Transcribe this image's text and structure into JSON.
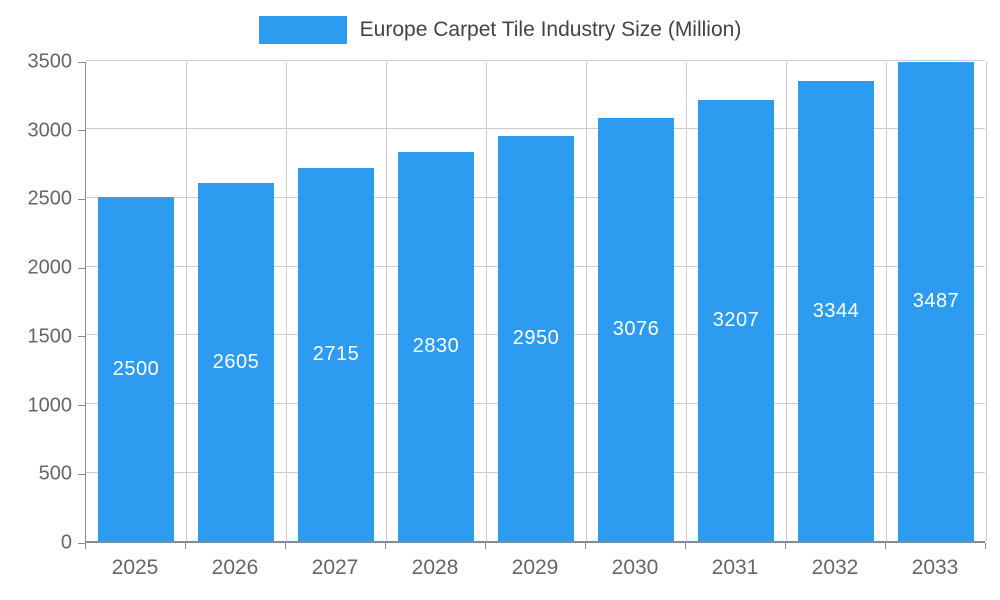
{
  "chart_data": {
    "type": "bar",
    "title": "Europe Carpet Tile Industry Size (Million)",
    "categories": [
      "2025",
      "2026",
      "2027",
      "2028",
      "2029",
      "2030",
      "2031",
      "2032",
      "2033"
    ],
    "values": [
      2500,
      2605,
      2715,
      2830,
      2950,
      3076,
      3207,
      3344,
      3487
    ],
    "value_labels": [
      "2500",
      "2605",
      "2715",
      "2830",
      "2950",
      "3076",
      "3207",
      "3344",
      "3487"
    ],
    "xlabel": "",
    "ylabel": "",
    "ylim": [
      0,
      3500
    ],
    "yticks": [
      0,
      500,
      1000,
      1500,
      2000,
      2500,
      3000,
      3500
    ],
    "grid": true,
    "legend_position": "top-center",
    "bar_label_position": "centered-inside",
    "colors": {
      "bar": "#2d9bf0",
      "bar_label": "#ffffff",
      "grid": "#cccccc",
      "axis_line": "#8a8a8a",
      "axis_text": "#666666",
      "title_text": "#434343"
    }
  }
}
